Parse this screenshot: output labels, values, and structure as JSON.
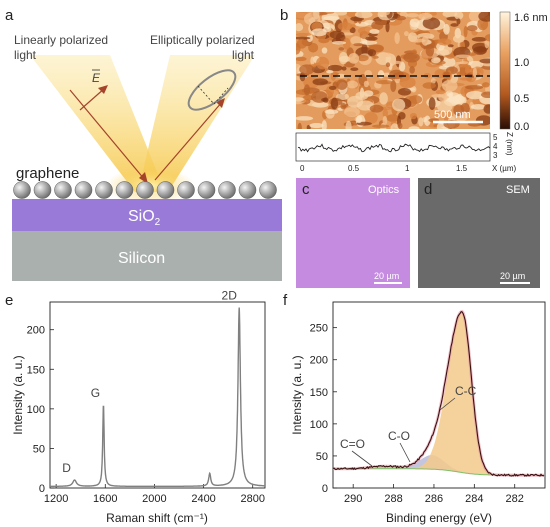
{
  "panels": {
    "a": {
      "label": "a",
      "incident_text_1": "Linearly polarized",
      "incident_text_2": "light",
      "reflected_text_1": "Elliptically polarized",
      "reflected_text_2": "light",
      "field_label": "E",
      "graphene_label": "graphene",
      "sio2_label": "SiO",
      "sio2_sub": "2",
      "silicon_label": "Silicon",
      "colors": {
        "sio2": "#9a7ad9",
        "silicon": "#aab0ae",
        "beam": "#f8d66a"
      }
    },
    "b": {
      "label": "b",
      "scalebar": "500 nm",
      "colorbar_ticks": [
        "1.6 nm",
        "1.0",
        "0.5",
        "0.0"
      ],
      "profile_xlabel": "X (µm)",
      "profile_ylabel": "Z (nm)",
      "profile_xticks": [
        "0",
        "0.5",
        "1",
        "1.5"
      ],
      "profile_yticks": [
        "5",
        "4",
        "3"
      ]
    },
    "c": {
      "label": "c",
      "title": "Optics",
      "scalebar": "20 µm",
      "color": "#c58be0"
    },
    "d": {
      "label": "d",
      "title": "SEM",
      "scalebar": "20 µm",
      "color": "#6a6a6a"
    },
    "e": {
      "label": "e"
    },
    "f": {
      "label": "f"
    }
  },
  "chart_data": [
    {
      "type": "line",
      "panel": "e",
      "xlabel": "Raman shift (cm⁻¹)",
      "ylabel": "Intensity (a. u.)",
      "xlim": [
        1150,
        2900
      ],
      "ylim": [
        0,
        235
      ],
      "xticks": [
        1200,
        1600,
        2000,
        2400,
        2800
      ],
      "yticks": [
        0,
        50,
        100,
        150,
        200
      ],
      "peaks": [
        {
          "name": "D",
          "x": 1350,
          "y": 10
        },
        {
          "name": "G",
          "x": 1585,
          "y": 105
        },
        {
          "name": "2D",
          "x": 2690,
          "y": 228
        }
      ],
      "extra_peaks": [
        {
          "x": 2450,
          "y": 18
        }
      ],
      "baseline": 2,
      "color": "#808080"
    },
    {
      "type": "line",
      "panel": "f",
      "xlabel": "Binding energy (eV)",
      "ylabel": "Intensity (a. u.)",
      "xlim": [
        291,
        280.5
      ],
      "ylim": [
        0,
        290
      ],
      "xticks": [
        290,
        288,
        286,
        284,
        282
      ],
      "yticks": [
        0,
        50,
        100,
        150,
        200,
        250
      ],
      "background": {
        "high": 30,
        "low": 20
      },
      "components": [
        {
          "name": "C-C",
          "center": 284.6,
          "height": 250,
          "sigma": 0.45,
          "color": "#f3c98a"
        },
        {
          "name": "C-O",
          "center": 286.1,
          "height": 22,
          "sigma": 0.6,
          "color": "#b8bcd8"
        },
        {
          "name": "C=O",
          "center": 288.4,
          "height": 4,
          "sigma": 0.7,
          "color": "#b9d9a8"
        }
      ],
      "envelope_color": "#e49aa5",
      "data_color": "#3b0f12"
    }
  ]
}
